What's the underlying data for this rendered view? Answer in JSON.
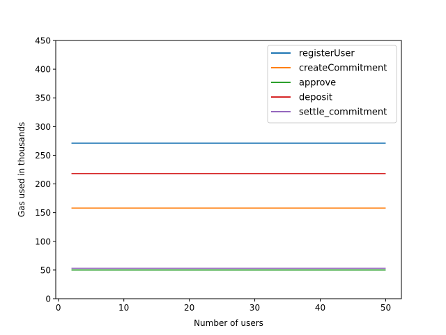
{
  "chart_data": {
    "type": "line",
    "title": "",
    "xlabel": "Number of users",
    "ylabel": "Gas used in thousands",
    "xlim": [
      -0.4,
      52.4
    ],
    "ylim": [
      0,
      450
    ],
    "xticks": [
      0,
      10,
      20,
      30,
      40,
      50
    ],
    "yticks": [
      0,
      50,
      100,
      150,
      200,
      250,
      300,
      350,
      400,
      450
    ],
    "xtick_labels": [
      "0",
      "10",
      "20",
      "30",
      "40",
      "50"
    ],
    "ytick_labels": [
      "0",
      "50",
      "100",
      "150",
      "200",
      "250",
      "300",
      "350",
      "400",
      "450"
    ],
    "grid": false,
    "legend_position": "top-right",
    "series": [
      {
        "name": "registerUser",
        "color": "#1f77b4",
        "x": [
          2,
          50
        ],
        "y": [
          271,
          271
        ]
      },
      {
        "name": "createCommitment",
        "color": "#ff7f0e",
        "x": [
          2,
          50
        ],
        "y": [
          158,
          158
        ]
      },
      {
        "name": "approve",
        "color": "#2ca02c",
        "x": [
          2,
          50
        ],
        "y": [
          50,
          50
        ]
      },
      {
        "name": "deposit",
        "color": "#d62728",
        "x": [
          2,
          50
        ],
        "y": [
          218,
          218
        ]
      },
      {
        "name": "settle_commitment",
        "color": "#9467bd",
        "x": [
          2,
          50
        ],
        "y": [
          53,
          53
        ]
      }
    ]
  }
}
